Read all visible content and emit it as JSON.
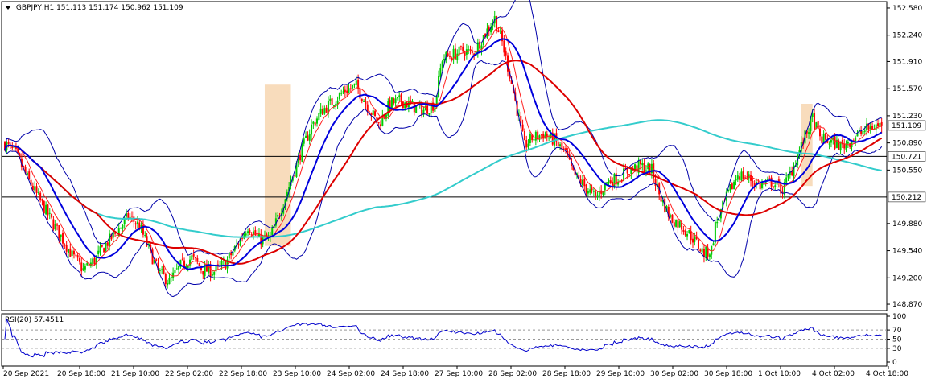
{
  "header": {
    "symbol": "GBPJPY,H1",
    "open": "151.113",
    "high": "151.174",
    "low": "150.962",
    "close": "151.109"
  },
  "rsi_panel": {
    "label": "RSI(20) 57.4511"
  },
  "colors": {
    "bull": "#00cc00",
    "bear": "#ff0000",
    "bb": "#0000aa",
    "ma_fast": "#ff2020",
    "ma_mid": "#0000dd",
    "ma_slow": "#dd0000",
    "ma_long": "#33cccc",
    "highlight": "#f8dcbc",
    "rsi": "#0000cc"
  },
  "chart_data": [
    {
      "type": "candlestick",
      "symbol": "GBPJPY",
      "timeframe": "H1",
      "y_ticks": [
        "152.580",
        "152.240",
        "151.910",
        "151.570",
        "151.230",
        "150.890",
        "150.550",
        "149.880",
        "149.540",
        "149.200",
        "148.870"
      ],
      "ylim": [
        148.87,
        152.58
      ],
      "x_ticks": [
        "20 Sep 2021",
        "20 Sep 18:00",
        "21 Sep 10:00",
        "22 Sep 02:00",
        "22 Sep 18:00",
        "23 Sep 10:00",
        "24 Sep 02:00",
        "24 Sep 18:00",
        "27 Sep 10:00",
        "28 Sep 02:00",
        "28 Sep 18:00",
        "29 Sep 10:00",
        "30 Sep 02:00",
        "30 Sep 18:00",
        "1 Oct 10:00",
        "4 Oct 02:00",
        "4 Oct 18:00"
      ],
      "current_price": "151.109",
      "horizontal_levels": [
        "150.721",
        "150.212"
      ],
      "close_path": [
        [
          0,
          150.88
        ],
        [
          6,
          150.75
        ],
        [
          12,
          150.45
        ],
        [
          18,
          150.2
        ],
        [
          24,
          149.95
        ],
        [
          30,
          149.72
        ],
        [
          36,
          149.48
        ],
        [
          42,
          149.3
        ],
        [
          48,
          149.42
        ],
        [
          54,
          149.62
        ],
        [
          60,
          149.78
        ],
        [
          66,
          149.97
        ],
        [
          72,
          149.85
        ],
        [
          76,
          149.62
        ],
        [
          82,
          149.28
        ],
        [
          88,
          149.15
        ],
        [
          94,
          149.35
        ],
        [
          100,
          149.45
        ],
        [
          106,
          149.3
        ],
        [
          112,
          149.28
        ],
        [
          118,
          149.38
        ],
        [
          124,
          149.6
        ],
        [
          130,
          149.85
        ],
        [
          136,
          149.68
        ],
        [
          142,
          149.7
        ],
        [
          146,
          149.95
        ],
        [
          152,
          150.35
        ],
        [
          158,
          150.75
        ],
        [
          164,
          151.1
        ],
        [
          170,
          151.3
        ],
        [
          176,
          151.42
        ],
        [
          182,
          151.55
        ],
        [
          188,
          151.6
        ],
        [
          194,
          151.35
        ],
        [
          200,
          151.12
        ],
        [
          206,
          151.38
        ],
        [
          212,
          151.42
        ],
        [
          218,
          151.35
        ],
        [
          224,
          151.3
        ],
        [
          230,
          151.38
        ],
        [
          234,
          151.95
        ],
        [
          240,
          152.0
        ],
        [
          246,
          152.05
        ],
        [
          250,
          152.0
        ],
        [
          254,
          152.15
        ],
        [
          258,
          152.3
        ],
        [
          262,
          152.45
        ],
        [
          266,
          152.15
        ],
        [
          270,
          151.75
        ],
        [
          274,
          151.3
        ],
        [
          278,
          150.85
        ],
        [
          282,
          150.95
        ],
        [
          288,
          151.0
        ],
        [
          294,
          150.92
        ],
        [
          300,
          150.75
        ],
        [
          304,
          150.5
        ],
        [
          310,
          150.35
        ],
        [
          316,
          150.2
        ],
        [
          322,
          150.4
        ],
        [
          328,
          150.45
        ],
        [
          334,
          150.55
        ],
        [
          340,
          150.6
        ],
        [
          346,
          150.55
        ],
        [
          350,
          150.25
        ],
        [
          356,
          149.95
        ],
        [
          362,
          149.85
        ],
        [
          368,
          149.7
        ],
        [
          374,
          149.5
        ],
        [
          378,
          149.55
        ],
        [
          380,
          149.85
        ],
        [
          386,
          150.2
        ],
        [
          392,
          150.5
        ],
        [
          398,
          150.45
        ],
        [
          404,
          150.35
        ],
        [
          410,
          150.4
        ],
        [
          416,
          150.3
        ],
        [
          420,
          150.5
        ],
        [
          426,
          150.85
        ],
        [
          432,
          151.2
        ],
        [
          436,
          150.95
        ],
        [
          442,
          150.9
        ],
        [
          448,
          150.85
        ],
        [
          454,
          150.95
        ],
        [
          460,
          151.05
        ],
        [
          466,
          151.11
        ]
      ],
      "bollinger_period_note": "",
      "highlight_zones": [
        {
          "from_index": 139,
          "to_index": 153,
          "low": 149.6,
          "high": 151.62
        },
        {
          "from_index": 426,
          "to_index": 432,
          "low": 150.35,
          "high": 151.38
        }
      ]
    },
    {
      "type": "line",
      "series_label": "RSI(20)",
      "value": 57.4511,
      "y_ticks": [
        "100",
        "70",
        "50",
        "30",
        "0"
      ],
      "ylim": [
        0,
        100
      ],
      "levels": [
        70,
        50,
        30
      ]
    }
  ]
}
